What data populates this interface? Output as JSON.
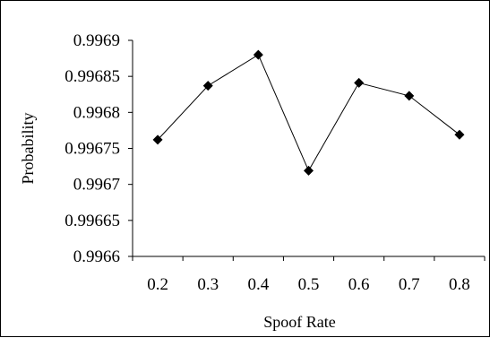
{
  "chart_data": {
    "type": "line",
    "title": "",
    "xlabel": "Spoof Rate",
    "ylabel": "Probability",
    "x": [
      0.2,
      0.3,
      0.4,
      0.5,
      0.6,
      0.7,
      0.8
    ],
    "x_tick_labels": [
      "0.2",
      "0.3",
      "0.4",
      "0.5",
      "0.6",
      "0.7",
      "0.8"
    ],
    "y_tick_labels": [
      "0.9966",
      "0.99665",
      "0.9967",
      "0.99675",
      "0.9968",
      "0.99685",
      "0.9969"
    ],
    "y_ticks": [
      0.9966,
      0.99665,
      0.9967,
      0.99675,
      0.9968,
      0.99685,
      0.9969
    ],
    "ylim": [
      0.9966,
      0.9969
    ],
    "series": [
      {
        "values": [
          0.996762,
          0.996837,
          0.99688,
          0.996719,
          0.996841,
          0.996823,
          0.996769
        ],
        "marker": "diamond",
        "color": "#000000"
      }
    ],
    "grid": false,
    "legend": "none"
  }
}
